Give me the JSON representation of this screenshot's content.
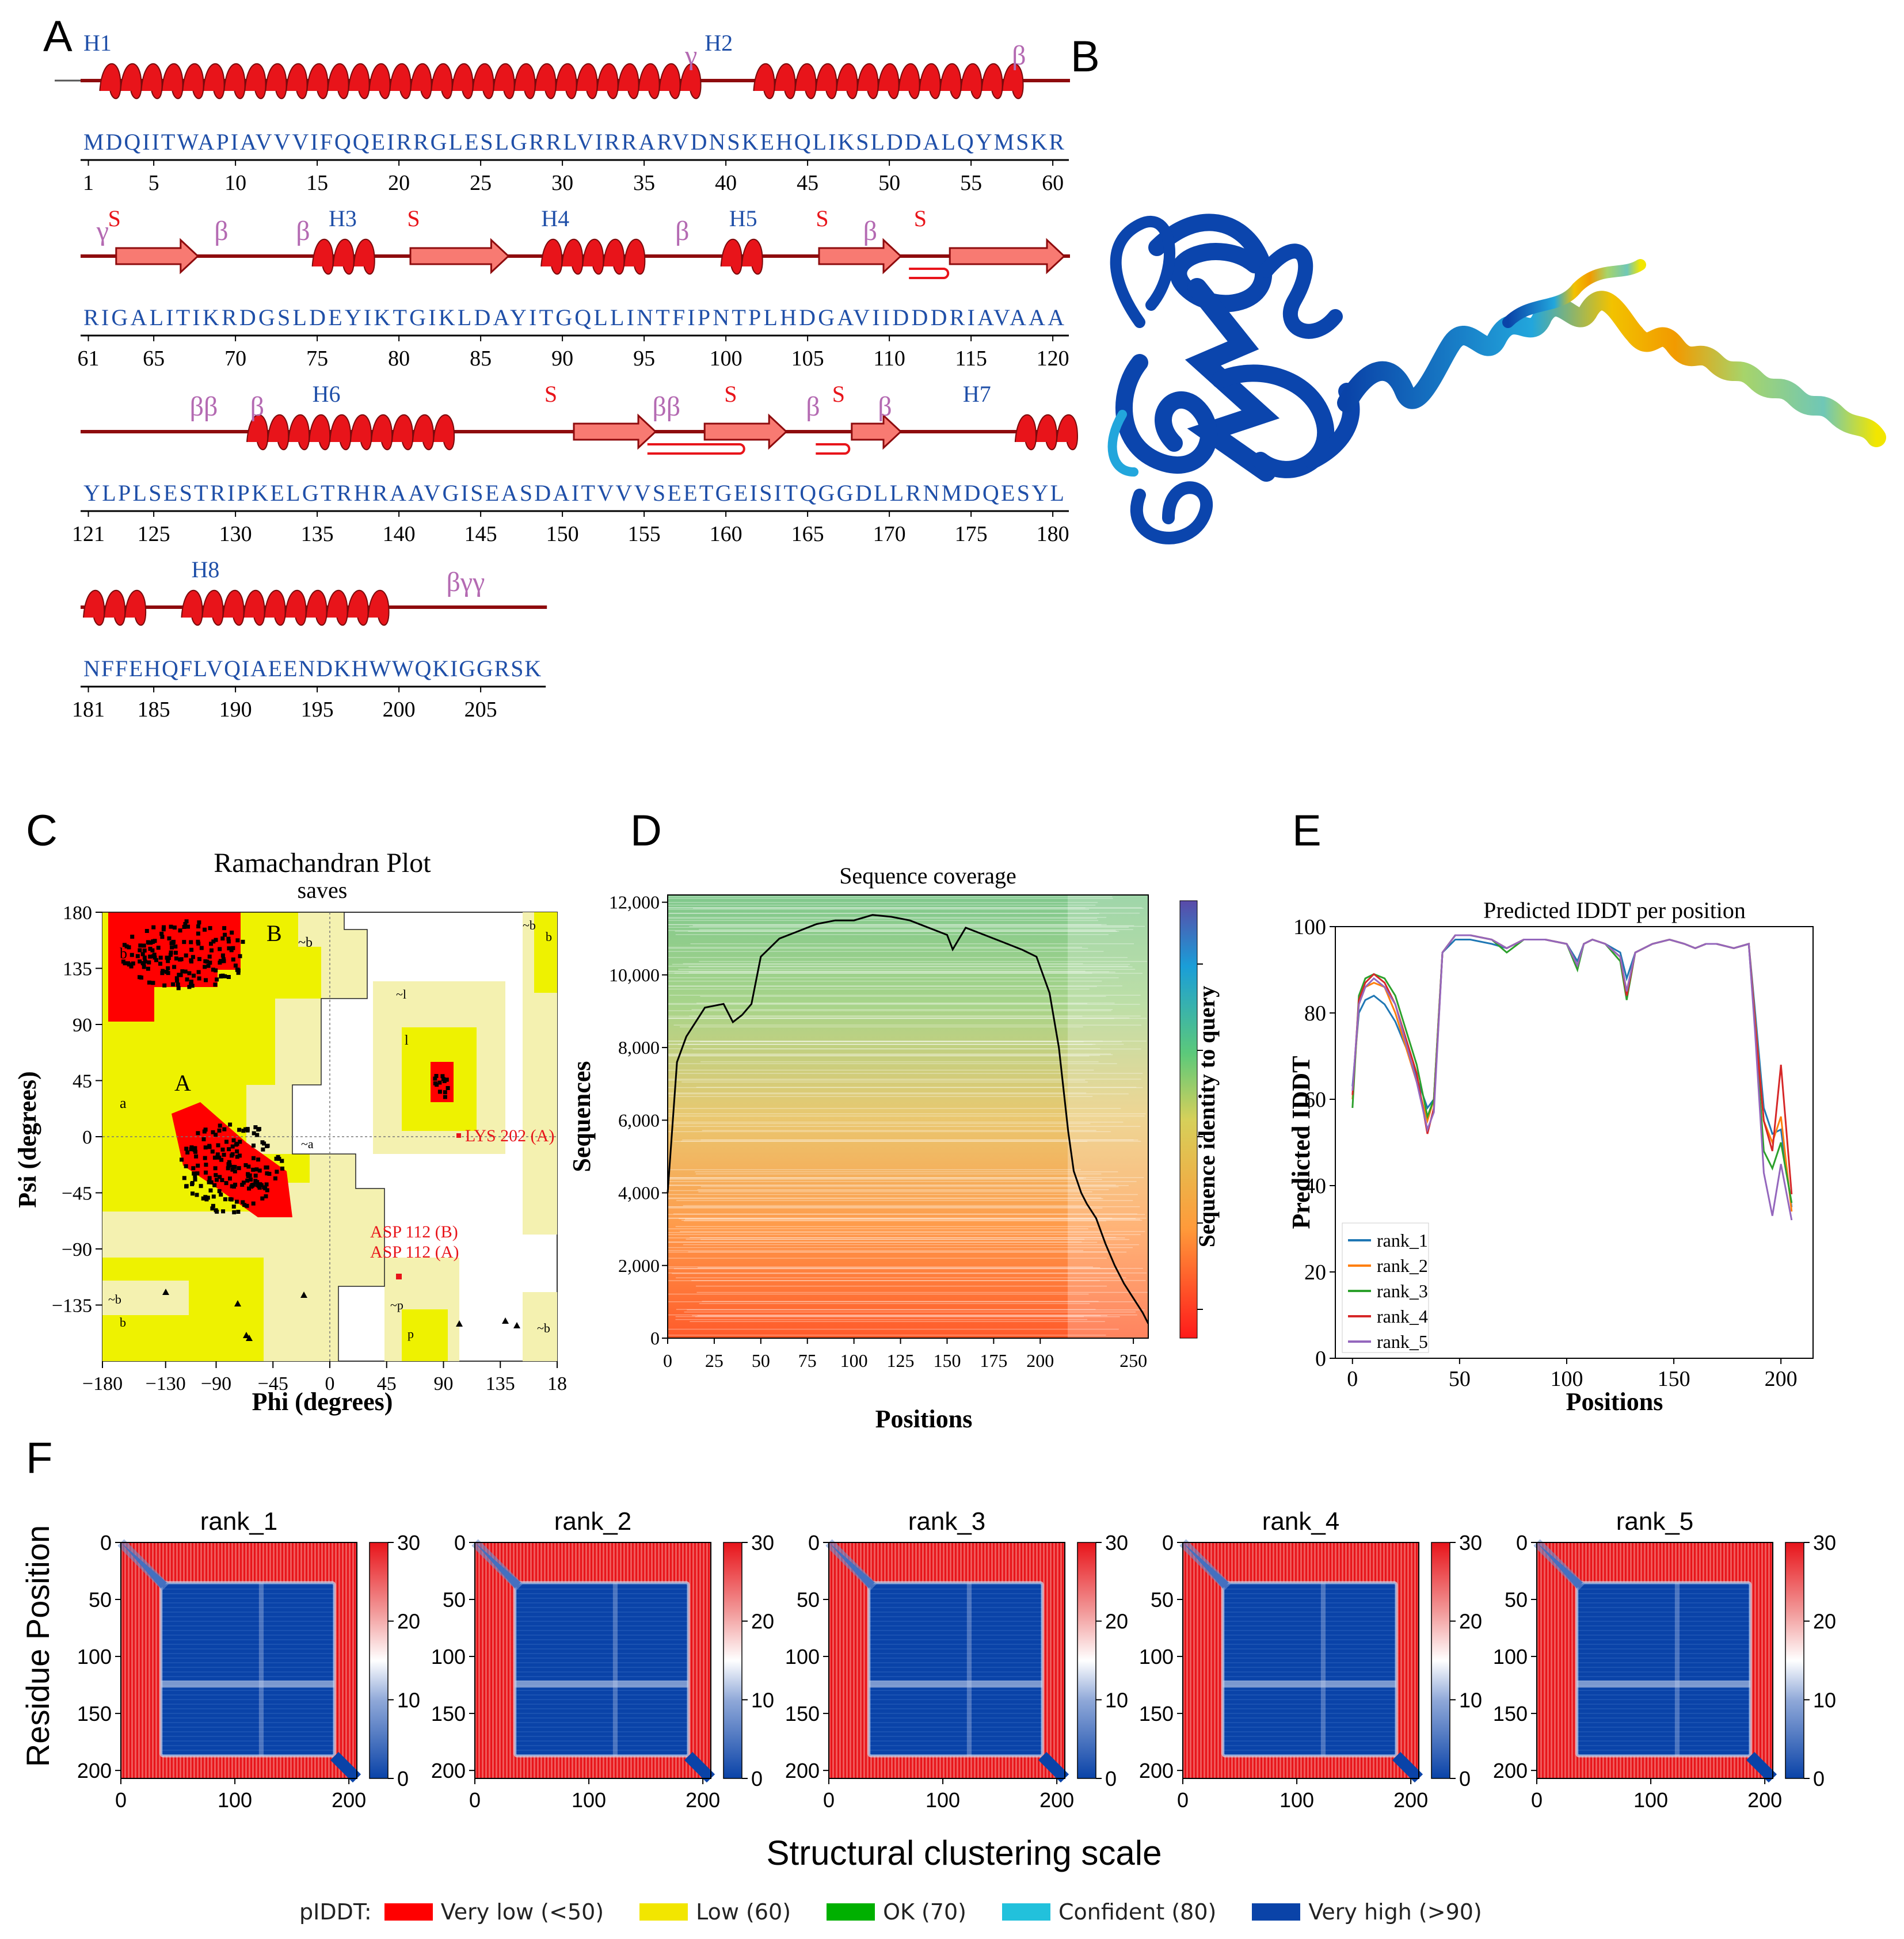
{
  "panels": {
    "A": "A",
    "B": "B",
    "C": "C",
    "D": "D",
    "E": "E",
    "F": "F"
  },
  "colors": {
    "helix": "#e8141a",
    "strand": "#f87a72",
    "seq": "#1f4fa8",
    "greek": "#b46ab2",
    "sgreek": "#e8141a",
    "veryLow": "#ff0000",
    "low": "#f2e600",
    "ok": "#00b000",
    "confident": "#22c1dc",
    "veryHigh": "#0a43a8",
    "line_rank1": "#1f77b4",
    "line_rank2": "#ff7f0e",
    "line_rank3": "#2ca02c",
    "line_rank4": "#d62728",
    "line_rank5": "#9467bd"
  },
  "panelA": {
    "rows": [
      {
        "seq": "MDQIITWAPIAVVVIFQQEIRRGLESLGRRLVIRRARVDNSKEHQLIKSLDDALQYMSKR",
        "start": 1,
        "ticks": [
          "1",
          "5",
          "10",
          "15",
          "20",
          "25",
          "30",
          "35",
          "40",
          "45",
          "50",
          "55",
          "60"
        ],
        "labels": [
          {
            "t": "H1",
            "k": "helixlbl"
          },
          {
            "t": "γ",
            "k": "greek"
          },
          {
            "t": "H2",
            "k": "helixlbl"
          },
          {
            "t": "β",
            "k": "greek"
          }
        ]
      },
      {
        "seq": "RIGALITIKRDGSLDEYIKTGIKLDAYITGQLLINTFIPNTPLHDGAVIIDDDRIAVAAA",
        "start": 61,
        "ticks": [
          "61",
          "65",
          "70",
          "75",
          "80",
          "85",
          "90",
          "95",
          "100",
          "105",
          "110",
          "115",
          "120"
        ],
        "labels": [
          {
            "t": "γ",
            "k": "greek"
          },
          {
            "t": "S",
            "k": "s"
          },
          {
            "t": "β",
            "k": "greek"
          },
          {
            "t": "β",
            "k": "greek"
          },
          {
            "t": "H3",
            "k": "helixlbl"
          },
          {
            "t": "S",
            "k": "s"
          },
          {
            "t": "H4",
            "k": "helixlbl"
          },
          {
            "t": "β",
            "k": "greek"
          },
          {
            "t": "H5",
            "k": "helixlbl"
          },
          {
            "t": "S",
            "k": "s"
          },
          {
            "t": "β",
            "k": "greek"
          },
          {
            "t": "S",
            "k": "s"
          }
        ]
      },
      {
        "seq": "YLPLSESTRIPKELGTRHRAAVGISEASDAITVVVSEETGEISITQGGDLLRNMDQESYL",
        "start": 121,
        "ticks": [
          "121",
          "125",
          "130",
          "135",
          "140",
          "145",
          "150",
          "155",
          "160",
          "165",
          "170",
          "175",
          "180"
        ],
        "labels": [
          {
            "t": "ββ",
            "k": "greek"
          },
          {
            "t": "β",
            "k": "greek"
          },
          {
            "t": "H6",
            "k": "helixlbl"
          },
          {
            "t": "S",
            "k": "s"
          },
          {
            "t": "ββ",
            "k": "greek"
          },
          {
            "t": "S",
            "k": "s"
          },
          {
            "t": "β",
            "k": "greek"
          },
          {
            "t": "S",
            "k": "s"
          },
          {
            "t": "β",
            "k": "greek"
          },
          {
            "t": "H7",
            "k": "helixlbl"
          }
        ]
      },
      {
        "seq": "NFFEHQFLVQIAEENDKHWWQKIGGRSK",
        "start": 181,
        "ticks": [
          "181",
          "185",
          "190",
          "195",
          "200",
          "205"
        ],
        "labels": [
          {
            "t": "H8",
            "k": "helixlbl"
          },
          {
            "t": "βγγ",
            "k": "greek"
          }
        ]
      }
    ]
  },
  "panelC": {
    "title": "Ramachandran Plot",
    "subtitle": "saves",
    "xlabel": "Phi (degrees)",
    "ylabel": "Psi (degrees)",
    "xticks": [
      "−180",
      "−130",
      "−90",
      "−45",
      "0",
      "45",
      "90",
      "135",
      "18"
    ],
    "yticks": [
      "180",
      "135",
      "90",
      "45",
      "0",
      "−45",
      "−90",
      "−135"
    ],
    "region_labels": [
      "B",
      "b",
      "A",
      "a",
      "~b",
      "~b",
      "~l",
      "l",
      "~a",
      "~b",
      "b",
      "~p",
      "p",
      "~b",
      "b"
    ],
    "annotations": [
      "LYS 202 (A)",
      "ASP 112 (B)",
      "ASP 112 (A)"
    ]
  },
  "panelD": {
    "title": "Sequence coverage",
    "xlabel": "Positions",
    "ylabel": "Sequences",
    "colorbar_label": "Sequence identity to query",
    "xticks": [
      "0",
      "25",
      "50",
      "75",
      "100",
      "125",
      "150",
      "175",
      "200",
      "250"
    ],
    "yticks": [
      "0",
      "2,000",
      "4,000",
      "6,000",
      "8,000",
      "10,000",
      "12,000"
    ],
    "chart_data": {
      "type": "line",
      "xlim": [
        0,
        258
      ],
      "ylim": [
        0,
        12200
      ],
      "x": [
        0,
        5,
        10,
        20,
        30,
        35,
        40,
        45,
        50,
        60,
        70,
        80,
        90,
        100,
        110,
        120,
        130,
        140,
        150,
        153,
        160,
        170,
        180,
        190,
        198,
        205,
        210,
        215,
        218,
        222,
        225,
        230,
        235,
        240,
        245,
        250,
        255,
        258
      ],
      "y": [
        4000,
        7600,
        8300,
        9100,
        9200,
        8700,
        8900,
        9200,
        10500,
        11000,
        11200,
        11400,
        11500,
        11500,
        11650,
        11600,
        11500,
        11300,
        11100,
        10700,
        11300,
        11100,
        10900,
        10700,
        10500,
        9500,
        8000,
        5700,
        4600,
        4000,
        3700,
        3300,
        2600,
        2000,
        1500,
        1100,
        700,
        400
      ]
    }
  },
  "panelE": {
    "title": "Predicted IDDT per position",
    "xlabel": "Positions",
    "ylabel": "Predicted IDDT",
    "xticks": [
      "0",
      "50",
      "100",
      "150",
      "200"
    ],
    "yticks": [
      "0",
      "20",
      "40",
      "60",
      "80",
      "100"
    ],
    "legend": [
      "rank_1",
      "rank_2",
      "rank_3",
      "rank_4",
      "rank_5"
    ],
    "chart_data": {
      "type": "line",
      "xlim": [
        -8,
        215
      ],
      "ylim": [
        0,
        100
      ],
      "x": [
        0,
        3,
        6,
        10,
        15,
        20,
        25,
        30,
        35,
        38,
        42,
        48,
        55,
        65,
        72,
        80,
        90,
        100,
        105,
        108,
        112,
        118,
        125,
        128,
        132,
        140,
        148,
        155,
        160,
        165,
        170,
        178,
        185,
        188,
        192,
        196,
        200,
        205
      ],
      "series": [
        {
          "name": "rank_1",
          "values": [
            63,
            80,
            83,
            84,
            82,
            78,
            72,
            65,
            58,
            60,
            94,
            97,
            97,
            96,
            95,
            97,
            97,
            96,
            92,
            96,
            97,
            96,
            94,
            88,
            94,
            96,
            97,
            96,
            95,
            96,
            96,
            95,
            96,
            80,
            58,
            52,
            53,
            35
          ]
        },
        {
          "name": "rank_2",
          "values": [
            60,
            82,
            86,
            87,
            86,
            80,
            72,
            64,
            55,
            60,
            94,
            98,
            98,
            97,
            95,
            97,
            97,
            96,
            91,
            96,
            97,
            96,
            93,
            85,
            94,
            96,
            97,
            96,
            95,
            96,
            96,
            95,
            96,
            78,
            55,
            50,
            56,
            34
          ]
        },
        {
          "name": "rank_3",
          "values": [
            58,
            84,
            88,
            89,
            88,
            84,
            76,
            68,
            56,
            60,
            94,
            98,
            98,
            97,
            94,
            97,
            97,
            96,
            90,
            96,
            97,
            96,
            92,
            83,
            94,
            96,
            97,
            96,
            95,
            96,
            96,
            95,
            96,
            76,
            48,
            44,
            50,
            36
          ]
        },
        {
          "name": "rank_4",
          "values": [
            61,
            83,
            87,
            89,
            87,
            82,
            74,
            66,
            52,
            58,
            94,
            98,
            98,
            97,
            95,
            97,
            97,
            96,
            91,
            96,
            97,
            96,
            93,
            84,
            94,
            96,
            97,
            96,
            95,
            96,
            96,
            95,
            96,
            77,
            55,
            48,
            68,
            38
          ]
        },
        {
          "name": "rank_5",
          "values": [
            62,
            82,
            86,
            88,
            86,
            82,
            73,
            64,
            53,
            57,
            94,
            98,
            98,
            97,
            95,
            97,
            97,
            96,
            91,
            96,
            97,
            96,
            93,
            85,
            94,
            96,
            97,
            96,
            95,
            96,
            96,
            95,
            96,
            75,
            43,
            33,
            45,
            32
          ]
        }
      ]
    }
  },
  "panelF": {
    "ylabel": "Residue Position",
    "xlabel": "Structural clustering scale",
    "titles": [
      "rank_1",
      "rank_2",
      "rank_3",
      "rank_4",
      "rank_5"
    ],
    "xticks": [
      "0",
      "100",
      "200"
    ],
    "yticks": [
      "0",
      "50",
      "100",
      "150",
      "200"
    ],
    "cbticks": [
      "30",
      "20",
      "10",
      "0"
    ]
  },
  "legend": {
    "title": "pIDDT:",
    "items": [
      {
        "label": "Very low (<50)",
        "color": "#ff0000"
      },
      {
        "label": "Low (60)",
        "color": "#f2e600"
      },
      {
        "label": "OK (70)",
        "color": "#00b000"
      },
      {
        "label": "Confident (80)",
        "color": "#22c1dc"
      },
      {
        "label": "Very high (>90)",
        "color": "#0a43a8"
      }
    ]
  }
}
